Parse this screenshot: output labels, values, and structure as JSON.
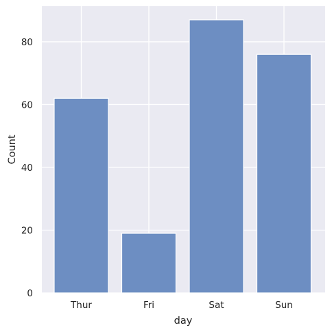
{
  "chart_data": {
    "type": "bar",
    "title": "",
    "xlabel": "day",
    "ylabel": "Count",
    "categories": [
      "Thur",
      "Fri",
      "Sat",
      "Sun"
    ],
    "values": [
      62,
      19,
      87,
      76
    ],
    "ylim": [
      0,
      91.35
    ],
    "yticks": [
      0,
      20,
      40,
      60,
      80
    ],
    "grid": true,
    "legend": "none",
    "colors": {
      "bar": "#6d8ec2",
      "bar_edge": "#ffffff",
      "plot_background": "#eaeaf2",
      "grid": "#ffffff",
      "text": "#222222"
    }
  }
}
